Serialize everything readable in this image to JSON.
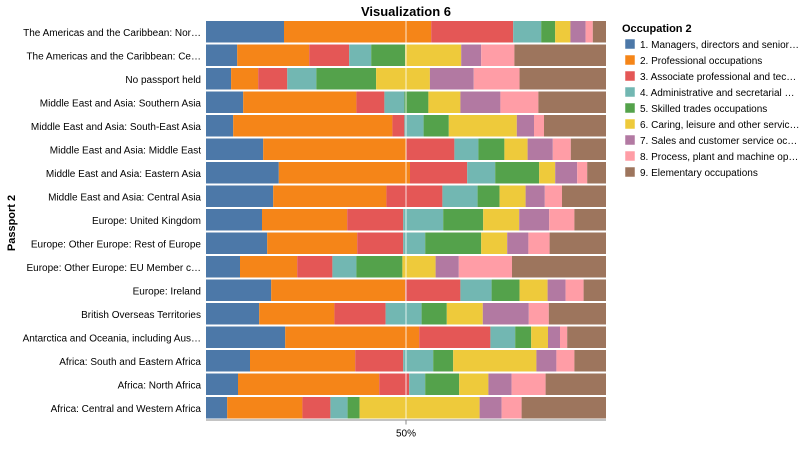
{
  "chart_data": {
    "type": "bar",
    "orientation": "horizontal",
    "stacked": "normalized",
    "title": "Visualization 6",
    "ylabel": "Passport 2",
    "x_tick_labels": [
      "50%"
    ],
    "xlim": [
      0,
      1
    ],
    "grid": false,
    "legend": {
      "title": "Occupation 2",
      "placement": "right",
      "entries": [
        "1. Managers, directors and senior…",
        "2. Professional occupations",
        "3. Associate professional and tec…",
        "4. Administrative and secretarial …",
        "5. Skilled trades occupations",
        "6. Caring, leisure and other servic…",
        "7. Sales and customer service oc…",
        "8. Process, plant and machine op…",
        "9. Elementary occupations"
      ]
    },
    "colors": [
      "#4c78a8",
      "#f58518",
      "#e45756",
      "#72b7b2",
      "#54a24b",
      "#eeca3b",
      "#b279a2",
      "#ff9da6",
      "#9d755d"
    ],
    "categories": [
      "The Americas and the Caribbean: Nor…",
      "The Americas and the Caribbean: Ce…",
      "No passport held",
      "Middle East and Asia: Southern Asia",
      "Middle East and Asia: South-East Asia",
      "Middle East and Asia: Middle East",
      "Middle East and Asia: Eastern Asia",
      "Middle East and Asia: Central Asia",
      "Europe: United Kingdom",
      "Europe: Other Europe: Rest of Europe",
      "Europe: Other Europe: EU Member c…",
      "Europe: Ireland",
      "British Overseas Territories",
      "Antarctica and Oceania, including Aus…",
      "Africa: South and Eastern Africa",
      "Africa: North Africa",
      "Africa: Central and Western Africa"
    ],
    "series": [
      {
        "name": "1. Managers, directors and senior…",
        "values": [
          0.195,
          0.078,
          0.063,
          0.093,
          0.068,
          0.143,
          0.182,
          0.168,
          0.14,
          0.153,
          0.085,
          0.163,
          0.133,
          0.198,
          0.11,
          0.08,
          0.053
        ]
      },
      {
        "name": "2. Professional occupations",
        "values": [
          0.368,
          0.18,
          0.068,
          0.283,
          0.398,
          0.358,
          0.328,
          0.283,
          0.213,
          0.225,
          0.143,
          0.335,
          0.188,
          0.335,
          0.263,
          0.353,
          0.188
        ]
      },
      {
        "name": "3. Associate professional and tec…",
        "values": [
          0.205,
          0.1,
          0.073,
          0.07,
          0.03,
          0.12,
          0.143,
          0.14,
          0.14,
          0.115,
          0.088,
          0.138,
          0.128,
          0.178,
          0.12,
          0.075,
          0.07
        ]
      },
      {
        "name": "4. Administrative and secretarial …",
        "values": [
          0.07,
          0.055,
          0.073,
          0.05,
          0.048,
          0.06,
          0.07,
          0.088,
          0.1,
          0.055,
          0.06,
          0.078,
          0.09,
          0.062,
          0.075,
          0.04,
          0.043
        ]
      },
      {
        "name": "5. Skilled trades occupations",
        "values": [
          0.035,
          0.085,
          0.15,
          0.06,
          0.063,
          0.065,
          0.11,
          0.055,
          0.1,
          0.14,
          0.115,
          0.07,
          0.063,
          0.04,
          0.05,
          0.085,
          0.03
        ]
      },
      {
        "name": "6. Caring, leisure and other servic…",
        "values": [
          0.038,
          0.14,
          0.135,
          0.08,
          0.17,
          0.058,
          0.04,
          0.065,
          0.09,
          0.065,
          0.083,
          0.07,
          0.09,
          0.042,
          0.208,
          0.073,
          0.3
        ]
      },
      {
        "name": "7. Sales and customer service oc…",
        "values": [
          0.038,
          0.05,
          0.11,
          0.1,
          0.043,
          0.063,
          0.055,
          0.048,
          0.075,
          0.053,
          0.058,
          0.045,
          0.115,
          0.03,
          0.05,
          0.058,
          0.055
        ]
      },
      {
        "name": "8. Process, plant and machine op…",
        "values": [
          0.018,
          0.083,
          0.115,
          0.095,
          0.025,
          0.045,
          0.025,
          0.043,
          0.063,
          0.053,
          0.133,
          0.045,
          0.05,
          0.018,
          0.045,
          0.085,
          0.05
        ]
      },
      {
        "name": "9. Elementary occupations",
        "values": [
          0.033,
          0.229,
          0.217,
          0.169,
          0.155,
          0.088,
          0.047,
          0.11,
          0.079,
          0.141,
          0.235,
          0.056,
          0.143,
          0.097,
          0.079,
          0.151,
          0.211
        ]
      }
    ]
  }
}
